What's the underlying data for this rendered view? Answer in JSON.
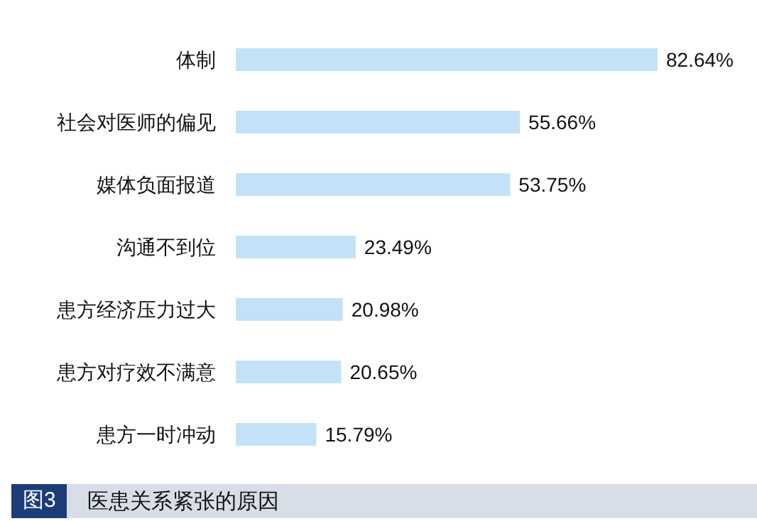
{
  "chart_data": {
    "type": "bar",
    "orientation": "horizontal",
    "title": "医患关系紧张的原因",
    "annotations": [
      "图3"
    ],
    "categories": [
      "体制",
      "社会对医师的偏见",
      "媒体负面报道",
      "沟通不到位",
      "患方经济压力过大",
      "患方对疗效不满意",
      "患方一时冲动"
    ],
    "values": [
      82.64,
      55.66,
      53.75,
      23.49,
      20.98,
      20.65,
      15.79
    ],
    "value_labels": [
      "82.64%",
      "55.66%",
      "53.75%",
      "23.49%",
      "20.98%",
      "20.65%",
      "15.79%"
    ],
    "color": "#c3e2f8"
  }
}
